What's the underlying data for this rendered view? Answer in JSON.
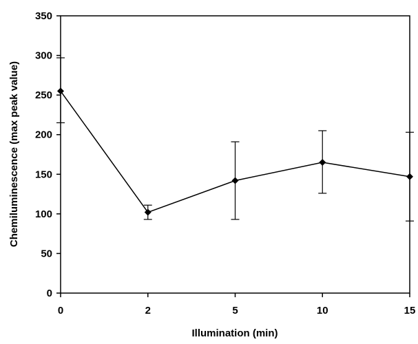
{
  "chart_data": {
    "type": "line",
    "title": "",
    "xlabel": "Illumination (min)",
    "ylabel": "Chemiluminescence (max peak value)",
    "categories": [
      "0",
      "2",
      "5",
      "10",
      "15"
    ],
    "series": [
      {
        "values": [
          255,
          102,
          142,
          165,
          147
        ],
        "error_low": [
          215,
          93,
          93,
          126,
          91
        ],
        "error_high": [
          297,
          111,
          191,
          205,
          203
        ]
      }
    ],
    "ylim": [
      0,
      350
    ],
    "yticks": [
      0,
      50,
      100,
      150,
      200,
      250,
      300,
      350
    ],
    "ytick_labels": [
      "0",
      "50",
      "100",
      "150",
      "200",
      "250",
      "300",
      "350"
    ],
    "grid": false,
    "legend": false,
    "marker": "diamond",
    "line_color": "#000000"
  }
}
